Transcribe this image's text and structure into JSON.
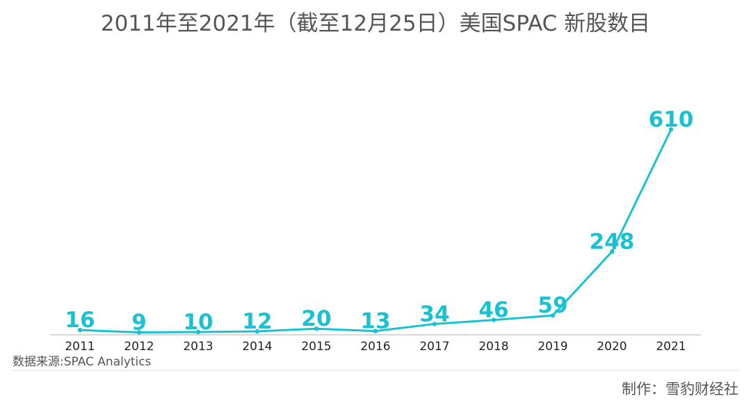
{
  "chart_data": {
    "type": "line",
    "title": "2011年至2021年（截至12月25日）美国SPAC 新股数目",
    "categories": [
      "2011",
      "2012",
      "2013",
      "2014",
      "2015",
      "2016",
      "2017",
      "2018",
      "2019",
      "2020",
      "2021"
    ],
    "series": [
      {
        "values": [
          16,
          9,
          10,
          12,
          20,
          13,
          34,
          46,
          59,
          248,
          610
        ]
      }
    ],
    "data_labels": [
      "16",
      "9",
      "10",
      "12",
      "20",
      "13",
      "34",
      "46",
      "59",
      "248",
      "610"
    ],
    "ylim": [
      0,
      700
    ],
    "grid": false,
    "legend": "none",
    "line_color": "#19c2d2",
    "axis_color": "#cccccc"
  },
  "footer": {
    "source": "数据来源:SPAC Analytics",
    "credit": "制作：雪豹财经社"
  }
}
